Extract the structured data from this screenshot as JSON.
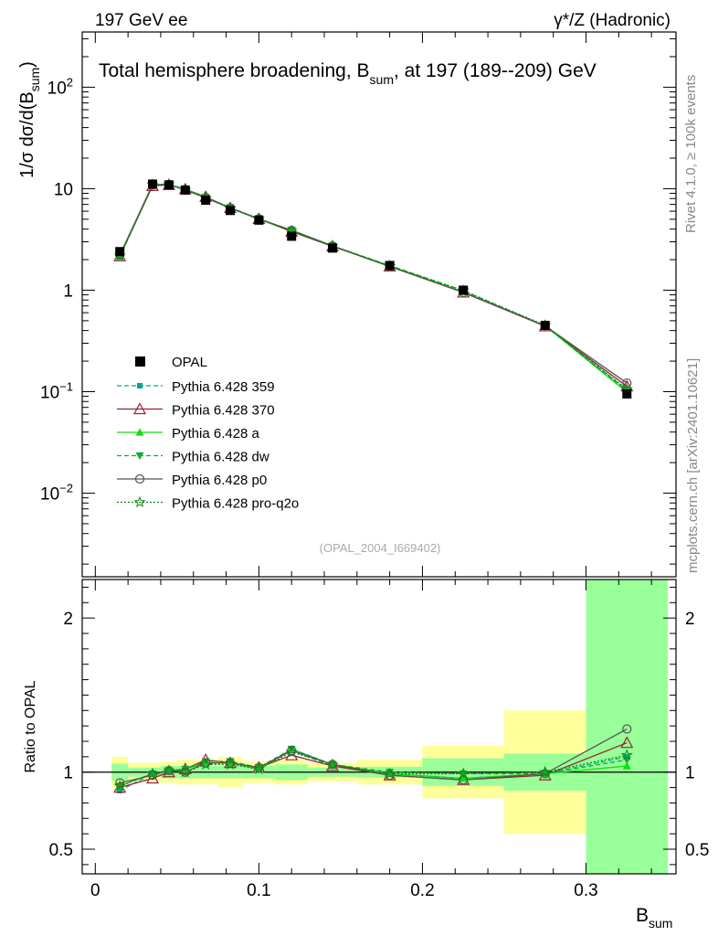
{
  "header": {
    "left": "197 GeV ee",
    "right_prefix": "γ*/Z (Hadronic)"
  },
  "side_labels": {
    "rivet": "Rivet 4.1.0, ≥ 100k events",
    "mcplots": "mcplots.cern.ch [arXiv:2401.10621]"
  },
  "watermark": "(OPAL_2004_I669402)",
  "chart_data": {
    "type": "line",
    "title_main": "Total hemisphere broadening, B",
    "title_sub": "sum",
    "title_rest": ", at 197 (189--209) GeV",
    "ylabel": "1/σ  dσ/d(B",
    "ylabel_sub": "sum",
    "ylabel_close": ")",
    "xlabel": "B",
    "xlabel_sub": "sum",
    "ratio_ylabel": "Ratio to OPAL",
    "xlim": [
      -0.008,
      0.355
    ],
    "ylim_log": [
      0.0015,
      350
    ],
    "ratio_ylim": [
      0.34,
      2.25
    ],
    "x_ticks": [
      0,
      0.1,
      0.2,
      0.3
    ],
    "x_tick_labels": [
      "0",
      "0.1",
      "0.2",
      "0.3"
    ],
    "y_ticks": [
      {
        "value": 0.01,
        "base": "10",
        "exp": "−2"
      },
      {
        "value": 0.1,
        "base": "10",
        "exp": "−1"
      },
      {
        "value": 1,
        "base": "1",
        "exp": ""
      },
      {
        "value": 10,
        "base": "10",
        "exp": ""
      },
      {
        "value": 100,
        "base": "10",
        "exp": "2"
      }
    ],
    "ratio_ticks": [
      {
        "value": 0.5,
        "label": "0.5"
      },
      {
        "value": 1,
        "label": "1"
      },
      {
        "value": 2,
        "label": "2"
      }
    ],
    "bin_edges": [
      0.01,
      0.02,
      0.04,
      0.05,
      0.06,
      0.075,
      0.09,
      0.11,
      0.13,
      0.16,
      0.2,
      0.25,
      0.3,
      0.35
    ],
    "x": [
      0.015,
      0.035,
      0.045,
      0.055,
      0.0675,
      0.0825,
      0.1,
      0.12,
      0.145,
      0.18,
      0.225,
      0.275,
      0.325
    ],
    "data": {
      "name": "OPAL",
      "values": [
        2.4,
        11.1,
        10.9,
        9.7,
        7.7,
        6.1,
        4.9,
        3.4,
        2.6,
        1.75,
        1.0,
        0.45,
        0.095
      ],
      "band_inner": [
        0.055,
        0.03,
        0.04,
        0.04,
        0.04,
        0.04,
        0.04,
        0.05,
        0.03,
        0.035,
        0.09,
        0.12,
        1.5
      ],
      "band_outer": [
        0.1,
        0.06,
        0.07,
        0.08,
        0.08,
        0.1,
        0.07,
        0.08,
        0.06,
        0.08,
        0.17,
        0.4,
        1.5
      ]
    },
    "series": [
      {
        "name": "Pythia 6.428 359",
        "color": "#00aa88",
        "dash": "5,3",
        "marker": "square",
        "ratio": [
          0.88,
          0.99,
          1.01,
          1.02,
          1.06,
          1.06,
          1.02,
          1.14,
          1.04,
          0.99,
          0.96,
          0.99,
          1.1
        ]
      },
      {
        "name": "Pythia 6.428 370",
        "color": "#992233",
        "dash": "",
        "marker": "triangle-open",
        "ratio": [
          0.9,
          0.96,
          1.0,
          1.02,
          1.08,
          1.06,
          1.03,
          1.11,
          1.04,
          0.98,
          0.95,
          0.98,
          1.19
        ]
      },
      {
        "name": "Pythia 6.428 a",
        "color": "#11dd11",
        "dash": "",
        "marker": "triangle",
        "ratio": [
          0.91,
          0.99,
          1.01,
          1.02,
          1.06,
          1.06,
          1.02,
          1.15,
          1.05,
          0.99,
          0.96,
          0.99,
          1.04
        ]
      },
      {
        "name": "Pythia 6.428 dw",
        "color": "#11aa33",
        "dash": "5,3",
        "marker": "triangle-down",
        "ratio": [
          0.91,
          0.99,
          1.01,
          1.02,
          1.07,
          1.07,
          1.03,
          1.15,
          1.05,
          1.0,
          0.99,
          0.99,
          1.08
        ]
      },
      {
        "name": "Pythia 6.428 p0",
        "color": "#555555",
        "dash": "",
        "marker": "circle-open",
        "ratio": [
          0.93,
          0.98,
          1.01,
          1.0,
          1.06,
          1.06,
          1.03,
          1.14,
          1.05,
          0.98,
          0.95,
          0.99,
          1.28
        ]
      },
      {
        "name": "Pythia 6.428 pro-q2o",
        "color": "#118811",
        "dash": "2,2",
        "marker": "star",
        "ratio": [
          0.91,
          0.99,
          1.01,
          1.0,
          1.05,
          1.05,
          1.02,
          1.13,
          1.05,
          0.99,
          0.99,
          1.0,
          1.11
        ]
      }
    ]
  }
}
